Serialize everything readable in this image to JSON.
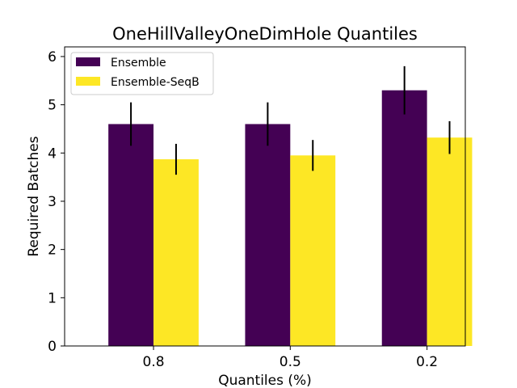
{
  "chart_data": {
    "type": "bar",
    "title": "OneHillValleyOneDimHole Quantiles",
    "xlabel": "Quantiles (%)",
    "ylabel": "Required Batches",
    "categories": [
      "0.8",
      "0.5",
      "0.2"
    ],
    "ylim": [
      0,
      6.2
    ],
    "yticks": [
      0,
      1,
      2,
      3,
      4,
      5,
      6
    ],
    "grid": false,
    "legend_position": "top-left",
    "series": [
      {
        "name": "Ensemble",
        "color": "#440154",
        "values": [
          4.6,
          4.6,
          5.3
        ],
        "errors": [
          0.45,
          0.45,
          0.5
        ]
      },
      {
        "name": "Ensemble-SeqB",
        "color": "#fde725",
        "values": [
          3.87,
          3.95,
          4.32
        ],
        "errors": [
          0.32,
          0.32,
          0.34
        ]
      }
    ]
  }
}
